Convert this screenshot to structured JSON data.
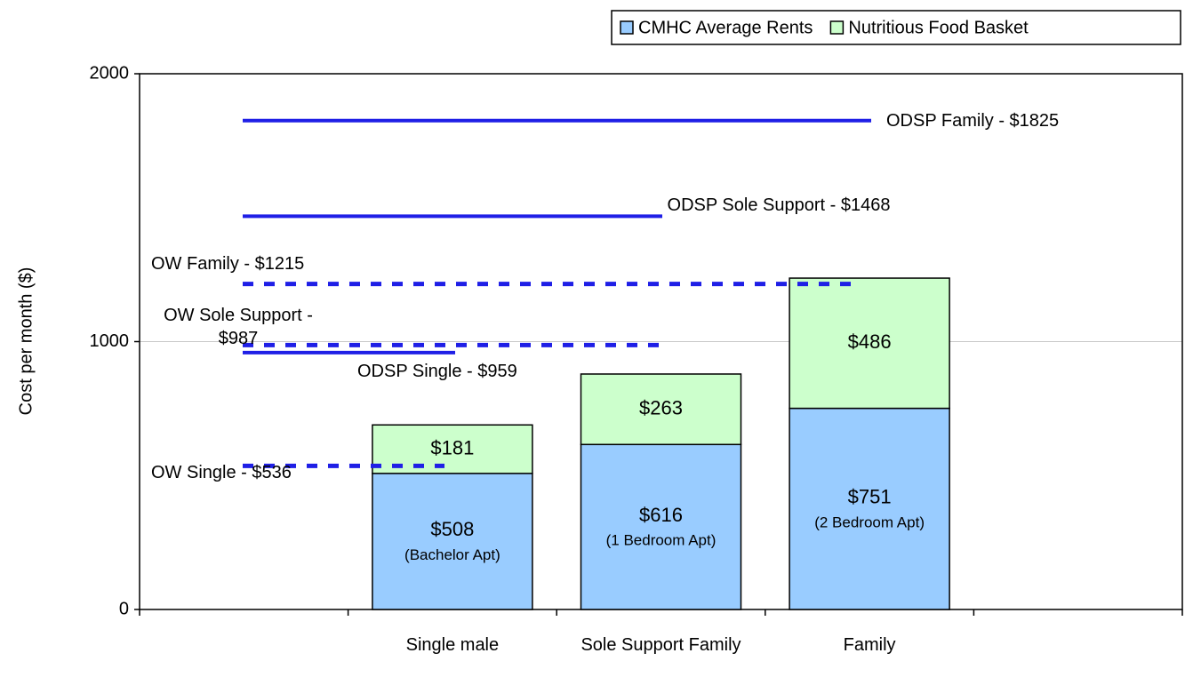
{
  "chart_data": {
    "type": "bar",
    "stacked": true,
    "y_label": "Cost per month ($)",
    "categories": [
      null,
      "Single male",
      "Sole Support Family",
      "Family",
      null
    ],
    "series": [
      {
        "name": "CMHC Average Rents",
        "color": "#99ccff",
        "values": [
          null,
          508,
          616,
          751,
          null
        ],
        "value_labels": [
          null,
          "$508",
          "$616",
          "$751",
          null
        ],
        "notes": [
          null,
          "(Bachelor Apt)",
          "(1 Bedroom Apt)",
          "(2 Bedroom Apt)",
          null
        ]
      },
      {
        "name": "Nutritious Food Basket",
        "color": "#ccffcc",
        "values": [
          null,
          181,
          263,
          486,
          null
        ],
        "value_labels": [
          null,
          "$181",
          "$263",
          "$486",
          null
        ]
      }
    ],
    "reference_lines": [
      {
        "label": "ODSP Family - $1825",
        "value": 1825,
        "style": "solid"
      },
      {
        "label": "ODSP Sole Support - $1468",
        "value": 1468,
        "style": "solid"
      },
      {
        "label": "OW Family - $1215",
        "value": 1215,
        "style": "dashed"
      },
      {
        "label": "OW Sole Support - $987",
        "value": 987,
        "style": "dashed"
      },
      {
        "label": "ODSP Single - $959",
        "value": 959,
        "style": "solid"
      },
      {
        "label": "OW Single - $536",
        "value": 536,
        "style": "dashed"
      }
    ],
    "reference_color": "#1f1fe6",
    "ylim": [
      0,
      2000
    ],
    "yticks": [
      0,
      1000,
      2000
    ],
    "grid": true,
    "legend": "top-right"
  }
}
